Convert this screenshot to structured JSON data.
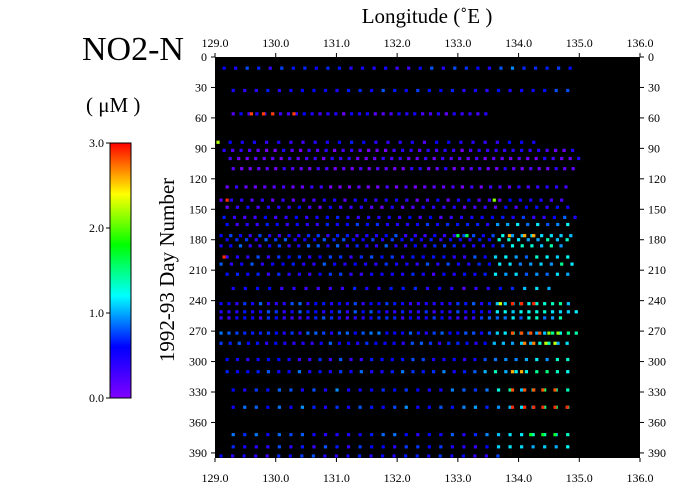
{
  "chart_data": {
    "type": "scatter",
    "variable": "NO2-N",
    "unit": "( μM )",
    "title": "Longitude (˚E )",
    "xlabel": "Longitude (˚E )",
    "ylabel": "1992-93   Day  Number",
    "xlim": [
      129.0,
      136.0
    ],
    "ylim": [
      0,
      395
    ],
    "y_inverted": true,
    "x_ticks": [
      "129.0",
      "130.0",
      "131.0",
      "132.0",
      "133.0",
      "134.0",
      "135.0",
      "136.0"
    ],
    "y_ticks": [
      "0",
      "30",
      "60",
      "90",
      "120",
      "150",
      "180",
      "210",
      "240",
      "270",
      "300",
      "330",
      "360",
      "390"
    ],
    "background": "#000000",
    "colorbar": {
      "min": 0.0,
      "max": 3.0,
      "tick_labels": [
        "0.0",
        "1.0",
        "2.0",
        "3.0"
      ],
      "colors": [
        "#8000ff",
        "#0000ff",
        "#00ffff",
        "#00ff00",
        "#ffff00",
        "#ff0000"
      ]
    },
    "cruises": [
      {
        "day": 11,
        "x_start": 129.15,
        "x_end": 135.0,
        "spacing": 0.19,
        "seed": 1,
        "base": 0.55
      },
      {
        "day": 33,
        "x_start": 129.3,
        "x_end": 134.85,
        "spacing": 0.19,
        "seed": 2,
        "base": 0.55
      },
      {
        "day": 56,
        "x_start": 129.3,
        "x_end": 133.55,
        "spacing": 0.13,
        "seed": 3,
        "base": 0.35
      },
      {
        "day": 84,
        "x_start": 129.05,
        "x_end": 134.4,
        "spacing": 0.2,
        "seed": 4,
        "base": 0.45
      },
      {
        "day": 92,
        "x_start": 129.15,
        "x_end": 134.95,
        "spacing": 0.14,
        "seed": 5,
        "base": 0.2
      },
      {
        "day": 100,
        "x_start": 129.25,
        "x_end": 135.05,
        "spacing": 0.14,
        "seed": 6,
        "base": 0.15
      },
      {
        "day": 110,
        "x_start": 129.3,
        "x_end": 134.9,
        "spacing": 0.14,
        "seed": 7,
        "base": 0.15
      },
      {
        "day": 128,
        "x_start": 129.2,
        "x_end": 134.9,
        "spacing": 0.155,
        "seed": 8,
        "base": 0.15
      },
      {
        "day": 141,
        "x_start": 129.1,
        "x_end": 134.85,
        "spacing": 0.17,
        "seed": 9,
        "base": 0.3
      },
      {
        "day": 148,
        "x_start": 129.2,
        "x_end": 134.9,
        "spacing": 0.17,
        "seed": 10,
        "base": 0.35
      },
      {
        "day": 158,
        "x_start": 129.15,
        "x_end": 134.95,
        "spacing": 0.17,
        "seed": 11,
        "base": 0.45
      },
      {
        "day": 165,
        "x_start": 129.2,
        "x_end": 134.85,
        "spacing": 0.165,
        "seed": 12,
        "base": 0.5
      },
      {
        "day": 176,
        "x_start": 129.1,
        "x_end": 134.95,
        "spacing": 0.16,
        "seed": 13,
        "base": 0.55
      },
      {
        "day": 180,
        "x_start": 129.2,
        "x_end": 134.85,
        "spacing": 0.16,
        "seed": 14,
        "base": 0.6
      },
      {
        "day": 186,
        "x_start": 129.1,
        "x_end": 134.8,
        "spacing": 0.16,
        "seed": 15,
        "base": 0.6
      },
      {
        "day": 197,
        "x_start": 129.2,
        "x_end": 134.85,
        "spacing": 0.17,
        "seed": 16,
        "base": 0.55
      },
      {
        "day": 204,
        "x_start": 129.1,
        "x_end": 134.95,
        "spacing": 0.17,
        "seed": 17,
        "base": 0.6
      },
      {
        "day": 214,
        "x_start": 129.2,
        "x_end": 134.85,
        "spacing": 0.17,
        "seed": 18,
        "base": 0.5
      },
      {
        "day": 228,
        "x_start": 129.3,
        "x_end": 134.65,
        "spacing": 0.2,
        "seed": 19,
        "base": 0.45
      },
      {
        "day": 243,
        "x_start": 129.1,
        "x_end": 134.85,
        "spacing": 0.13,
        "seed": 20,
        "base": 0.6
      },
      {
        "day": 251,
        "x_start": 129.1,
        "x_end": 134.95,
        "spacing": 0.13,
        "seed": 21,
        "base": 0.55
      },
      {
        "day": 257,
        "x_start": 129.1,
        "x_end": 134.75,
        "spacing": 0.13,
        "seed": 22,
        "base": 0.55
      },
      {
        "day": 272,
        "x_start": 129.1,
        "x_end": 134.95,
        "spacing": 0.13,
        "seed": 23,
        "base": 0.65
      },
      {
        "day": 282,
        "x_start": 129.1,
        "x_end": 134.85,
        "spacing": 0.15,
        "seed": 24,
        "base": 0.6
      },
      {
        "day": 298,
        "x_start": 129.2,
        "x_end": 134.95,
        "spacing": 0.17,
        "seed": 25,
        "base": 0.55
      },
      {
        "day": 310,
        "x_start": 129.2,
        "x_end": 134.95,
        "spacing": 0.17,
        "seed": 26,
        "base": 0.7
      },
      {
        "day": 328,
        "x_start": 129.3,
        "x_end": 134.85,
        "spacing": 0.19,
        "seed": 27,
        "base": 0.7
      },
      {
        "day": 345,
        "x_start": 129.3,
        "x_end": 134.85,
        "spacing": 0.19,
        "seed": 28,
        "base": 0.7
      },
      {
        "day": 372,
        "x_start": 129.3,
        "x_end": 134.85,
        "spacing": 0.19,
        "seed": 29,
        "base": 0.65
      },
      {
        "day": 384,
        "x_start": 129.3,
        "x_end": 134.85,
        "spacing": 0.19,
        "seed": 30,
        "base": 0.55
      },
      {
        "day": 393,
        "x_start": 129.1,
        "x_end": 133.8,
        "spacing": 0.19,
        "seed": 31,
        "base": 0.55
      }
    ],
    "highlights": [
      {
        "day": 56,
        "x": [
          129.6,
          129.8,
          129.95,
          130.3
        ],
        "value": 2.85
      },
      {
        "day": 84,
        "x": [
          129.05
        ],
        "value": 2.2
      },
      {
        "day": 141,
        "x": [
          129.2
        ],
        "value": 2.9
      },
      {
        "day": 141,
        "x": [
          133.6
        ],
        "value": 2.1
      },
      {
        "day": 176,
        "x": [
          133.85,
          134.1,
          134.25
        ],
        "value": 2.6
      },
      {
        "day": 176,
        "x": [
          133.0,
          133.15
        ],
        "value": 1.6
      },
      {
        "day": 197,
        "x": [
          129.15
        ],
        "value": 2.9
      },
      {
        "day": 243,
        "x": [
          133.9,
          134.05,
          134.25
        ],
        "value": 2.9
      },
      {
        "day": 243,
        "x": [
          133.7
        ],
        "value": 2.3
      },
      {
        "day": 272,
        "x": [
          133.9,
          134.05,
          134.2,
          134.35
        ],
        "value": 2.8
      },
      {
        "day": 272,
        "x": [
          134.5,
          134.65
        ],
        "value": 2.15
      },
      {
        "day": 282,
        "x": [
          134.1,
          134.25
        ],
        "value": 2.7
      },
      {
        "day": 282,
        "x": [
          134.45,
          134.6
        ],
        "value": 2.25
      },
      {
        "day": 310,
        "x": [
          133.9,
          134.05
        ],
        "value": 2.6
      },
      {
        "day": 328,
        "x": [
          133.9,
          134.1,
          134.25,
          134.4,
          134.6
        ],
        "value": 2.8
      },
      {
        "day": 345,
        "x": [
          133.9,
          134.1,
          134.25,
          134.4,
          134.6,
          134.8
        ],
        "value": 2.9
      },
      {
        "day": 372,
        "x": [
          134.2,
          134.4,
          134.6
        ],
        "value": 1.7
      }
    ]
  }
}
